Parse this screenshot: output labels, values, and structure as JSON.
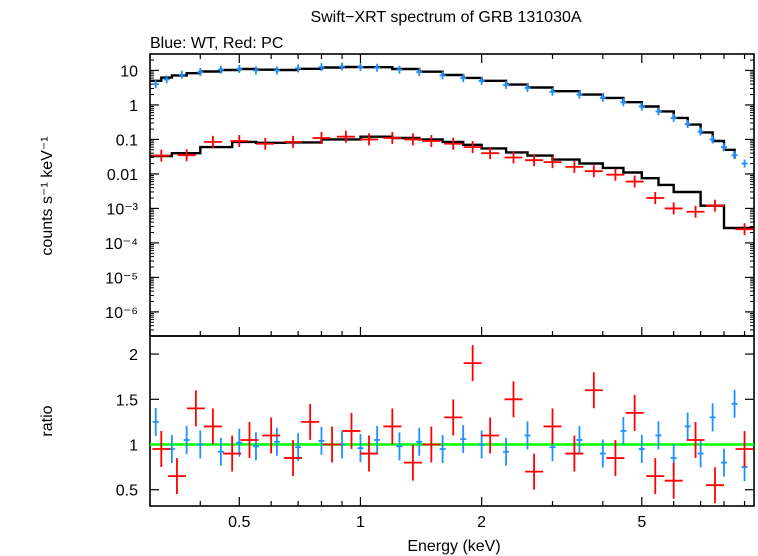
{
  "title": "Swift−XRT spectrum of GRB 131030A",
  "subtitle": "Blue: WT, Red: PC",
  "colors": {
    "wt": "#1e90ff",
    "pc": "#ff0000",
    "model": "#000000",
    "unity": "#00ff00",
    "frame": "#000000"
  },
  "chart_data": [
    {
      "type": "scatter",
      "panel": "spectrum",
      "xlabel": "Energy (keV)",
      "ylabel": "counts s⁻¹ keV⁻¹",
      "xscale": "log",
      "yscale": "log",
      "xlim": [
        0.3,
        9.5
      ],
      "ylim": [
        2e-07,
        30
      ],
      "yticks": [
        {
          "value": 10,
          "label": "10"
        },
        {
          "value": 1,
          "label": "1"
        },
        {
          "value": 0.1,
          "label": "0.1"
        },
        {
          "value": 0.01,
          "label": "0.01"
        },
        {
          "value": 0.001,
          "label": "10⁻³"
        },
        {
          "value": 0.0001,
          "label": "10⁻⁴"
        },
        {
          "value": 1e-05,
          "label": "10⁻⁵"
        },
        {
          "value": 1e-06,
          "label": "10⁻⁶"
        }
      ],
      "series": [
        {
          "key": "wt",
          "x": [
            0.31,
            0.33,
            0.36,
            0.4,
            0.45,
            0.5,
            0.55,
            0.62,
            0.7,
            0.8,
            0.9,
            1.0,
            1.1,
            1.25,
            1.4,
            1.6,
            1.8,
            2.0,
            2.3,
            2.6,
            3.0,
            3.5,
            4.0,
            4.5,
            5.0,
            5.5,
            6.0,
            6.5,
            7.0,
            7.5,
            8.0,
            8.5,
            9.0
          ],
          "y": [
            4.0,
            5.5,
            7.5,
            9.0,
            10.5,
            11.0,
            10.0,
            10.0,
            11.5,
            12.5,
            13.0,
            12.5,
            12.0,
            10.5,
            9.0,
            7.2,
            6.0,
            5.0,
            3.8,
            3.1,
            2.4,
            2.0,
            1.6,
            1.2,
            0.9,
            0.65,
            0.42,
            0.28,
            0.17,
            0.1,
            0.06,
            0.035,
            0.02
          ]
        },
        {
          "key": "pc",
          "x": [
            0.32,
            0.37,
            0.43,
            0.5,
            0.58,
            0.68,
            0.8,
            0.92,
            1.05,
            1.2,
            1.35,
            1.5,
            1.7,
            1.9,
            2.1,
            2.4,
            2.7,
            3.0,
            3.4,
            3.8,
            4.3,
            4.8,
            5.4,
            6.0,
            6.8,
            7.6,
            9.0
          ],
          "y": [
            0.034,
            0.035,
            0.085,
            0.09,
            0.075,
            0.085,
            0.11,
            0.12,
            0.1,
            0.11,
            0.1,
            0.09,
            0.075,
            0.06,
            0.04,
            0.03,
            0.025,
            0.022,
            0.016,
            0.012,
            0.0095,
            0.006,
            0.002,
            0.001,
            0.0008,
            0.0012,
            0.00025
          ]
        }
      ],
      "models": [
        {
          "key": "wt_model",
          "x": [
            0.3,
            0.32,
            0.34,
            0.37,
            0.4,
            0.45,
            0.5,
            0.55,
            0.62,
            0.7,
            0.8,
            0.9,
            1.0,
            1.2,
            1.4,
            1.6,
            1.8,
            2.0,
            2.3,
            2.6,
            3.0,
            3.5,
            4.0,
            4.5,
            5.0,
            5.5,
            6.0,
            6.5,
            7.0,
            7.5,
            8.0,
            8.5
          ],
          "y": [
            5.0,
            6.2,
            7.2,
            8.3,
            9.3,
            10.3,
            11.0,
            10.5,
            10.3,
            11.2,
            12.2,
            12.6,
            12.4,
            11.0,
            9.2,
            7.4,
            6.1,
            5.0,
            3.9,
            3.2,
            2.5,
            2.0,
            1.6,
            1.2,
            0.9,
            0.65,
            0.42,
            0.27,
            0.16,
            0.09,
            0.05,
            0.028
          ]
        },
        {
          "key": "pc_model",
          "x": [
            0.3,
            0.34,
            0.4,
            0.48,
            0.55,
            0.65,
            0.8,
            1.0,
            1.2,
            1.4,
            1.6,
            1.8,
            2.0,
            2.3,
            2.6,
            3.0,
            3.5,
            4.0,
            4.5,
            5.0,
            5.5,
            6.0,
            7.0,
            8.0,
            9.5
          ],
          "y": [
            0.033,
            0.04,
            0.06,
            0.085,
            0.08,
            0.082,
            0.1,
            0.12,
            0.11,
            0.1,
            0.085,
            0.07,
            0.055,
            0.042,
            0.034,
            0.026,
            0.02,
            0.015,
            0.011,
            0.0075,
            0.0048,
            0.003,
            0.0012,
            0.00027,
            0.00027
          ]
        }
      ]
    },
    {
      "type": "scatter",
      "panel": "ratio",
      "xlabel": "Energy (keV)",
      "ylabel": "ratio",
      "xscale": "log",
      "yscale": "linear",
      "xlim": [
        0.3,
        9.5
      ],
      "ylim": [
        0.32,
        2.2
      ],
      "xticks": [
        {
          "value": 0.5,
          "label": "0.5"
        },
        {
          "value": 1,
          "label": "1"
        },
        {
          "value": 2,
          "label": "2"
        },
        {
          "value": 5,
          "label": "5"
        }
      ],
      "yticks": [
        {
          "value": 0.5,
          "label": "0.5"
        },
        {
          "value": 1,
          "label": "1"
        },
        {
          "value": 1.5,
          "label": "1.5"
        },
        {
          "value": 2,
          "label": "2"
        }
      ],
      "reference_line": 1.0,
      "series": [
        {
          "key": "wt",
          "x": [
            0.31,
            0.34,
            0.37,
            0.4,
            0.45,
            0.5,
            0.55,
            0.62,
            0.7,
            0.8,
            0.9,
            1.0,
            1.1,
            1.25,
            1.4,
            1.6,
            1.8,
            2.0,
            2.3,
            2.6,
            3.0,
            3.5,
            4.0,
            4.5,
            5.0,
            5.5,
            6.0,
            6.5,
            7.0,
            7.5,
            8.0,
            8.5,
            9.0
          ],
          "y": [
            1.25,
            0.95,
            1.05,
            1.0,
            0.92,
            1.02,
            0.98,
            1.03,
            0.97,
            1.04,
            1.0,
            0.96,
            1.05,
            0.98,
            1.03,
            0.95,
            1.06,
            1.0,
            0.92,
            1.1,
            0.97,
            1.05,
            0.9,
            1.15,
            0.95,
            1.1,
            0.85,
            1.2,
            0.9,
            1.3,
            0.8,
            1.45,
            0.75
          ]
        },
        {
          "key": "pc",
          "x": [
            0.32,
            0.35,
            0.39,
            0.43,
            0.48,
            0.53,
            0.6,
            0.68,
            0.75,
            0.85,
            0.95,
            1.05,
            1.2,
            1.35,
            1.5,
            1.7,
            1.9,
            2.1,
            2.4,
            2.7,
            3.0,
            3.4,
            3.8,
            4.3,
            4.8,
            5.4,
            6.0,
            6.8,
            7.6,
            9.0
          ],
          "y": [
            0.95,
            0.65,
            1.4,
            1.2,
            0.9,
            1.05,
            1.1,
            0.85,
            1.25,
            1.0,
            1.15,
            0.9,
            1.2,
            0.8,
            1.0,
            1.3,
            1.9,
            1.1,
            1.5,
            0.7,
            1.2,
            0.9,
            1.6,
            0.85,
            1.35,
            0.65,
            0.6,
            1.05,
            0.55,
            0.95
          ]
        }
      ]
    }
  ]
}
